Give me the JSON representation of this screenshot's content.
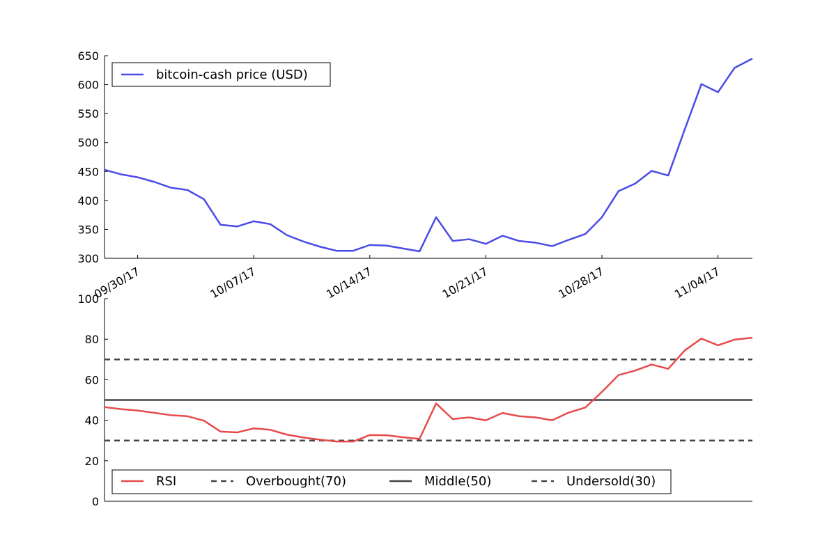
{
  "chart_data": [
    {
      "type": "line",
      "title": "",
      "xlabel": "",
      "ylabel": "",
      "x_dates": [
        "2017-09-28",
        "2017-09-29",
        "2017-09-30",
        "2017-10-01",
        "2017-10-02",
        "2017-10-03",
        "2017-10-04",
        "2017-10-05",
        "2017-10-06",
        "2017-10-07",
        "2017-10-08",
        "2017-10-09",
        "2017-10-10",
        "2017-10-11",
        "2017-10-12",
        "2017-10-13",
        "2017-10-14",
        "2017-10-15",
        "2017-10-16",
        "2017-10-17",
        "2017-10-18",
        "2017-10-19",
        "2017-10-20",
        "2017-10-21",
        "2017-10-22",
        "2017-10-23",
        "2017-10-24",
        "2017-10-25",
        "2017-10-26",
        "2017-10-27",
        "2017-10-28",
        "2017-10-29",
        "2017-10-30",
        "2017-10-31",
        "2017-11-01",
        "2017-11-02",
        "2017-11-03",
        "2017-11-04",
        "2017-11-05"
      ],
      "xticks": [
        {
          "date": "2017-09-30",
          "label": "09/30/17"
        },
        {
          "date": "2017-10-07",
          "label": "10/07/17"
        },
        {
          "date": "2017-10-14",
          "label": "10/14/17"
        },
        {
          "date": "2017-10-21",
          "label": "10/21/17"
        },
        {
          "date": "2017-10-28",
          "label": "10/28/17"
        },
        {
          "date": "2017-11-04",
          "label": "11/04/17"
        }
      ],
      "ylim": [
        300,
        650
      ],
      "yticks": [
        300,
        350,
        400,
        450,
        500,
        550,
        600,
        650
      ],
      "legend_position": "upper-left",
      "series": [
        {
          "name": "bitcoin-cash price (USD)",
          "color": "#4a4ae8",
          "values": [
            453,
            445,
            440,
            432,
            422,
            418,
            402,
            358,
            355,
            364,
            359,
            340,
            329,
            320,
            313,
            313,
            323,
            322,
            317,
            312,
            371,
            330,
            333,
            325,
            339,
            330,
            327,
            321,
            332,
            342,
            371,
            416,
            429,
            451,
            443,
            523,
            601,
            587,
            629
          ]
        }
      ],
      "last_value": 645
    },
    {
      "type": "line",
      "title": "",
      "xlabel": "",
      "ylabel": "",
      "ylim": [
        0,
        100
      ],
      "yticks": [
        0,
        20,
        40,
        60,
        80,
        100
      ],
      "legend_position": "lower-left",
      "series": [
        {
          "name": "RSI",
          "color": "#e84a4a",
          "values": [
            46.5,
            45.5,
            44.8,
            43.7,
            42.5,
            42.0,
            39.8,
            34.4,
            34.0,
            36.0,
            35.3,
            32.9,
            31.5,
            30.4,
            29.5,
            29.5,
            32.7,
            32.6,
            31.6,
            30.8,
            48.3,
            40.6,
            41.4,
            40.0,
            43.6,
            42.0,
            41.4,
            40.0,
            43.8,
            46.3,
            54.0,
            62.3,
            64.5,
            67.5,
            65.4,
            74.5,
            80.3,
            77.0,
            79.8
          ],
          "last_value": 80.7
        },
        {
          "name": "Overbought(70)",
          "color": "#444444",
          "style": "dashed",
          "value": 70
        },
        {
          "name": "Middle(50)",
          "color": "#444444",
          "style": "solid",
          "value": 50
        },
        {
          "name": "Undersold(30)",
          "color": "#444444",
          "style": "dashed",
          "value": 30
        }
      ]
    }
  ]
}
